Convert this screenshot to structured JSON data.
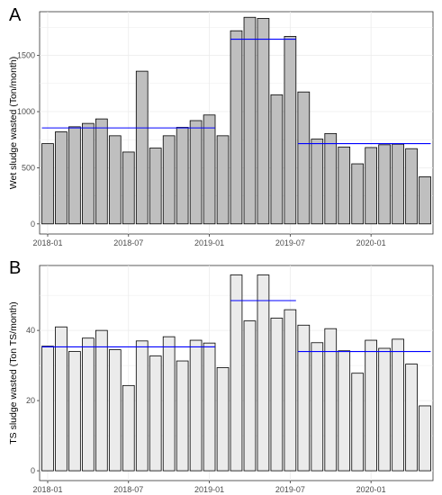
{
  "panels": [
    {
      "letter": "A"
    },
    {
      "letter": "B"
    }
  ],
  "chart_data": [
    {
      "type": "bar",
      "panel": "A",
      "ylabel": "Wet sludge wasted (Ton/month)",
      "xlabel": "",
      "ylim": [
        -90,
        1890
      ],
      "yticks": [
        0,
        500,
        1000,
        1500
      ],
      "x_dates": [
        "2018-01",
        "2018-02",
        "2018-03",
        "2018-04",
        "2018-05",
        "2018-06",
        "2018-07",
        "2018-08",
        "2018-09",
        "2018-10",
        "2018-11",
        "2018-12",
        "2019-01",
        "2019-02",
        "2019-03",
        "2019-04",
        "2019-05",
        "2019-06",
        "2019-07",
        "2019-08",
        "2019-09",
        "2019-10",
        "2019-11",
        "2019-12",
        "2020-01",
        "2020-02",
        "2020-03",
        "2020-04",
        "2020-05"
      ],
      "xticks": [
        "2018-01",
        "2018-07",
        "2019-01",
        "2019-07",
        "2020-01"
      ],
      "values": [
        715,
        820,
        865,
        895,
        935,
        785,
        640,
        1360,
        675,
        785,
        860,
        920,
        970,
        785,
        1720,
        1840,
        1830,
        1150,
        1670,
        1175,
        755,
        805,
        685,
        535,
        680,
        705,
        710,
        670,
        420
      ],
      "mean_lines": [
        {
          "from": "2018-01",
          "to": "2019-01",
          "value": 855,
          "color": "#0000ff"
        },
        {
          "from": "2019-03",
          "to": "2019-07",
          "value": 1645,
          "color": "#0000ff"
        },
        {
          "from": "2019-08",
          "to": "2020-05",
          "value": 715,
          "color": "#0000ff"
        }
      ],
      "bar_fill": "#bfbfbf",
      "grid": true
    },
    {
      "type": "bar",
      "panel": "B",
      "ylabel": "TS sludge wasted (Ton TS/month)",
      "xlabel": "",
      "ylim": [
        -2.8,
        58.5
      ],
      "yticks": [
        0,
        20,
        40
      ],
      "x_dates": [
        "2018-01",
        "2018-02",
        "2018-03",
        "2018-04",
        "2018-05",
        "2018-06",
        "2018-07",
        "2018-08",
        "2018-09",
        "2018-10",
        "2018-11",
        "2018-12",
        "2019-01",
        "2019-02",
        "2019-03",
        "2019-04",
        "2019-05",
        "2019-06",
        "2019-07",
        "2019-08",
        "2019-09",
        "2019-10",
        "2019-11",
        "2019-12",
        "2020-01",
        "2020-02",
        "2020-03",
        "2020-04",
        "2020-05"
      ],
      "xticks": [
        "2018-01",
        "2018-07",
        "2019-01",
        "2019-07",
        "2020-01"
      ],
      "values": [
        35.5,
        41,
        34,
        37.8,
        40,
        34.5,
        24.3,
        37,
        32.7,
        38.2,
        31.3,
        37.2,
        36.4,
        29.4,
        55.8,
        42.7,
        55.8,
        43.5,
        45.9,
        41.5,
        36.5,
        40.5,
        34.2,
        27.8,
        37.2,
        34.9,
        37.5,
        30.4,
        18.5
      ],
      "mean_lines": [
        {
          "from": "2018-01",
          "to": "2019-01",
          "value": 35.3,
          "color": "#0000ff"
        },
        {
          "from": "2019-03",
          "to": "2019-07",
          "value": 48.5,
          "color": "#0000ff"
        },
        {
          "from": "2019-08",
          "to": "2020-05",
          "value": 34,
          "color": "#0000ff"
        }
      ],
      "bar_fill": "#ebebeb",
      "grid": true
    }
  ]
}
